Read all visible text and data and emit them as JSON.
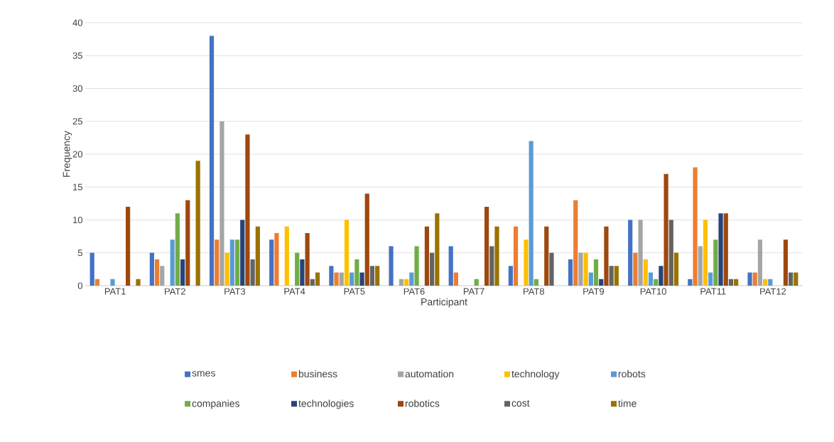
{
  "chart_data": {
    "type": "bar",
    "xlabel": "Participant",
    "ylabel": "Frequency",
    "categories": [
      "PAT1",
      "PAT2",
      "PAT3",
      "PAT4",
      "PAT5",
      "PAT6",
      "PAT7",
      "PAT8",
      "PAT9",
      "PAT10",
      "PAT11",
      "PAT12"
    ],
    "series": [
      {
        "name": "smes",
        "color": "#4472c4",
        "values": [
          5,
          5,
          38,
          7,
          3,
          6,
          6,
          3,
          4,
          10,
          1,
          2
        ]
      },
      {
        "name": "business",
        "color": "#ed7d31",
        "values": [
          1,
          4,
          7,
          8,
          2,
          0,
          2,
          9,
          13,
          5,
          18,
          2
        ]
      },
      {
        "name": "automation",
        "color": "#a5a5a5",
        "values": [
          0,
          3,
          25,
          0,
          2,
          1,
          0,
          0,
          5,
          10,
          6,
          7
        ]
      },
      {
        "name": "technology",
        "color": "#ffc000",
        "values": [
          0,
          0,
          5,
          9,
          10,
          1,
          0,
          7,
          5,
          4,
          10,
          1
        ]
      },
      {
        "name": "robots",
        "color": "#5b9bd5",
        "values": [
          1,
          7,
          7,
          0,
          2,
          2,
          0,
          22,
          2,
          2,
          2,
          1
        ]
      },
      {
        "name": "companies",
        "color": "#70ad47",
        "values": [
          0,
          11,
          7,
          5,
          4,
          6,
          1,
          1,
          4,
          1,
          7,
          0
        ]
      },
      {
        "name": "technologies",
        "color": "#264478",
        "values": [
          0,
          4,
          10,
          4,
          2,
          0,
          0,
          0,
          1,
          3,
          11,
          0
        ]
      },
      {
        "name": "robotics",
        "color": "#9e480e",
        "values": [
          12,
          13,
          23,
          8,
          14,
          9,
          12,
          9,
          9,
          17,
          11,
          7
        ]
      },
      {
        "name": "cost",
        "color": "#636363",
        "values": [
          0,
          0,
          4,
          1,
          3,
          5,
          6,
          5,
          3,
          10,
          1,
          2
        ]
      },
      {
        "name": "time",
        "color": "#997300",
        "values": [
          1,
          19,
          9,
          2,
          3,
          11,
          9,
          0,
          3,
          5,
          1,
          2
        ]
      }
    ],
    "ylim": [
      0,
      40
    ],
    "yticks": [
      0,
      5,
      10,
      15,
      20,
      25,
      30,
      35,
      40
    ],
    "grid": "y",
    "legend": "bottom"
  }
}
